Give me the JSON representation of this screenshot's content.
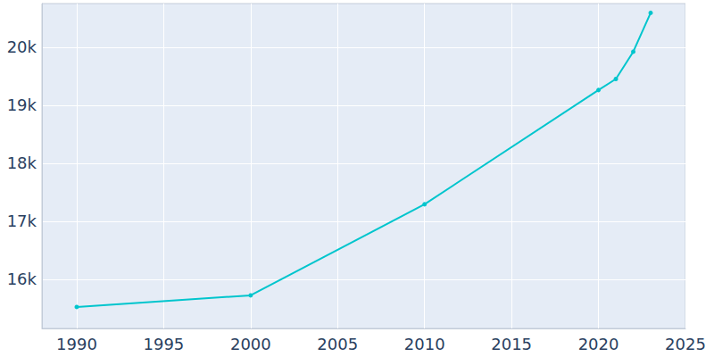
{
  "chart_data": {
    "type": "line",
    "x": [
      1990,
      2000,
      2010,
      2020,
      2021,
      2022,
      2023
    ],
    "values": [
      15520,
      15720,
      17290,
      19260,
      19450,
      19920,
      20590
    ],
    "color": "#00c5cd",
    "marker": "circle",
    "xlim": [
      1988,
      2025
    ],
    "xticks": [
      1990,
      1995,
      2000,
      2005,
      2010,
      2015,
      2020,
      2025
    ],
    "ylim": [
      15150,
      20750
    ],
    "yticks": [
      {
        "value": 16000,
        "label": "16k"
      },
      {
        "value": 17000,
        "label": "17k"
      },
      {
        "value": 18000,
        "label": "18k"
      },
      {
        "value": 19000,
        "label": "19k"
      },
      {
        "value": 20000,
        "label": "20k"
      }
    ],
    "grid": true
  }
}
